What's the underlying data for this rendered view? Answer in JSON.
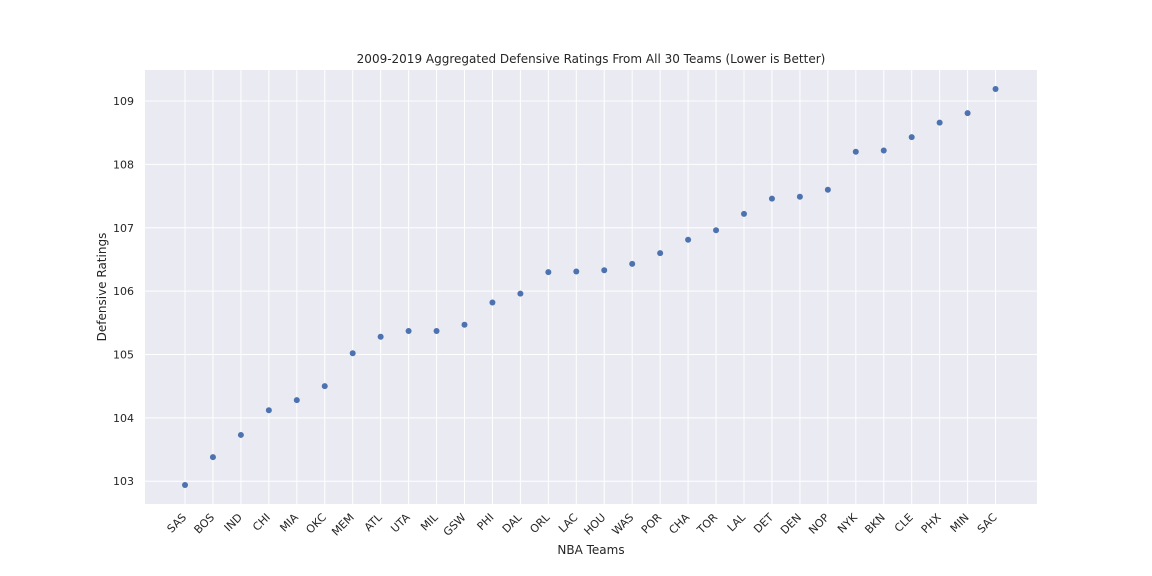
{
  "chart_data": {
    "type": "scatter",
    "title": "2009-2019 Aggregated Defensive Ratings From All 30 Teams (Lower is Better)",
    "xlabel": "NBA Teams",
    "ylabel": "Defensive Ratings",
    "categories": [
      "SAS",
      "BOS",
      "IND",
      "CHI",
      "MIA",
      "OKC",
      "MEM",
      "ATL",
      "UTA",
      "MIL",
      "GSW",
      "PHI",
      "DAL",
      "ORL",
      "LAC",
      "HOU",
      "WAS",
      "POR",
      "CHA",
      "TOR",
      "LAL",
      "DET",
      "DEN",
      "NOP",
      "NYK",
      "BKN",
      "CLE",
      "PHX",
      "MIN",
      "SAC"
    ],
    "values": [
      102.94,
      103.38,
      103.73,
      104.12,
      104.28,
      104.5,
      105.02,
      105.28,
      105.37,
      105.37,
      105.47,
      105.82,
      105.96,
      106.3,
      106.31,
      106.33,
      106.43,
      106.6,
      106.81,
      106.96,
      107.22,
      107.46,
      107.49,
      107.6,
      108.2,
      108.22,
      108.43,
      108.66,
      108.81,
      109.19
    ],
    "ylim": [
      102.64,
      109.49
    ],
    "yticks": [
      103,
      104,
      105,
      106,
      107,
      108,
      109
    ],
    "grid": true,
    "marker_color": "#4c72b0",
    "background_color": "#eaeaf2",
    "grid_color": "#ffffff"
  }
}
